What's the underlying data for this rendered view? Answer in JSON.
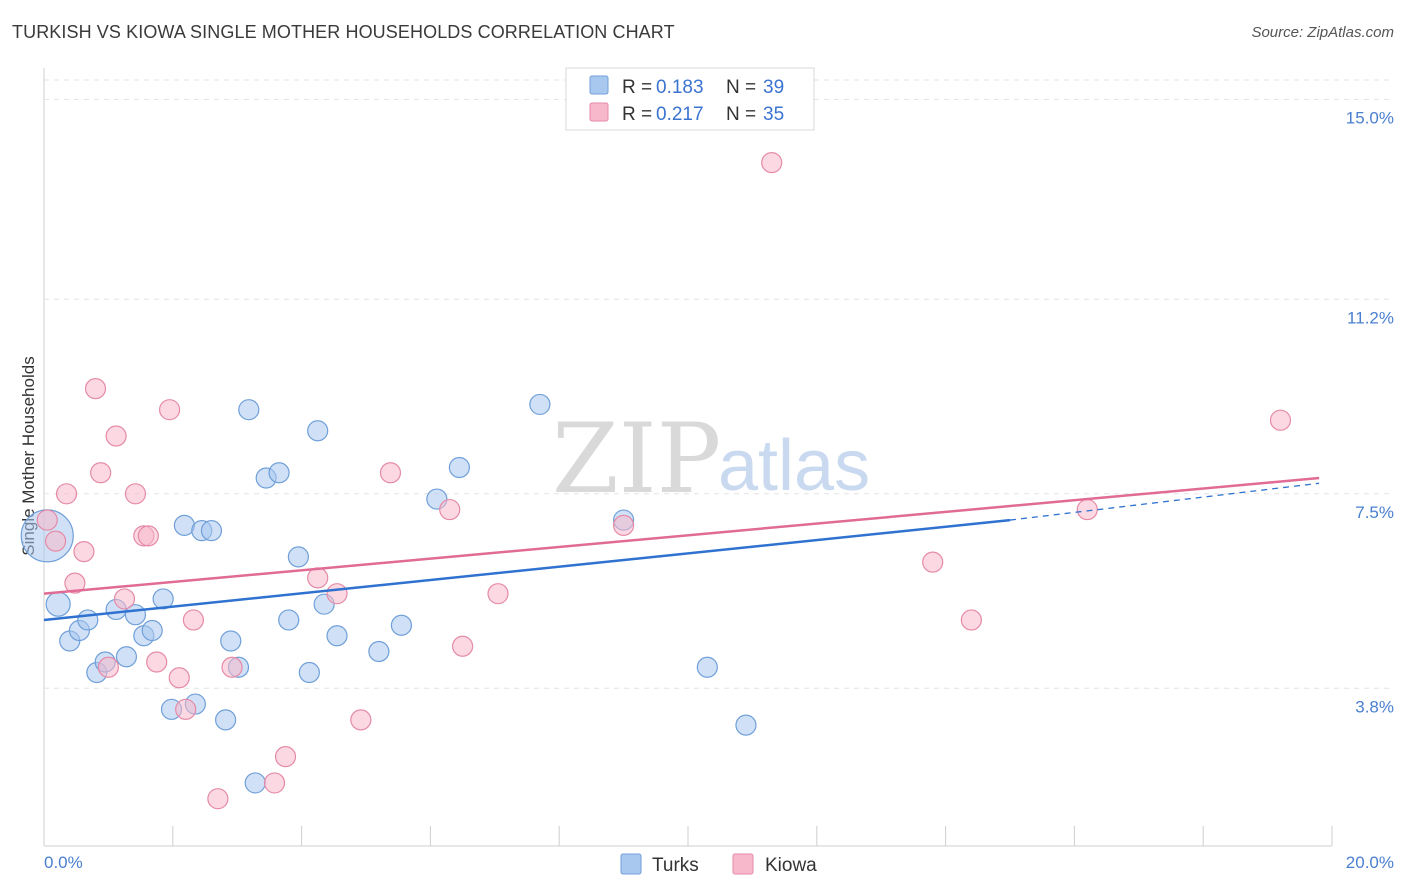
{
  "header": {
    "title": "TURKISH VS KIOWA SINGLE MOTHER HOUSEHOLDS CORRELATION CHART",
    "source": "Source: ZipAtlas.com"
  },
  "watermark": {
    "zip": "ZIP",
    "atlas": "atlas"
  },
  "legend": {
    "rows": [
      {
        "r_label": "R =",
        "r_value": "0.183",
        "n_label": "N =",
        "n_value": "39",
        "color": "#a9c8f0"
      },
      {
        "r_label": "R =",
        "r_value": "0.217",
        "n_label": "N =",
        "n_value": "35",
        "color": "#f7b8cb"
      }
    ]
  },
  "bottom_legend": {
    "turks": "Turks",
    "kiowa": "Kiowa"
  },
  "chart_data": {
    "type": "scatter",
    "title": "TURKISH VS KIOWA SINGLE MOTHER HOUSEHOLDS CORRELATION CHART",
    "xlabel": "",
    "ylabel": "Single Mother Households",
    "xlim": [
      0,
      20
    ],
    "ylim": [
      0.8,
      15.6
    ],
    "x_tick_labels": [
      "0.0%",
      "20.0%"
    ],
    "y_ticks": [
      3.8,
      7.5,
      11.2,
      15.0
    ],
    "y_tick_labels": [
      "3.8%",
      "7.5%",
      "11.2%",
      "15.0%"
    ],
    "grid": true,
    "series": [
      {
        "name": "Turks",
        "color": "#a9c8f0",
        "edge": "#6f9fd8",
        "line_color": "#2f72cf",
        "r": 0.183,
        "n": 39,
        "trend": {
          "x_start": 0,
          "y_start": 5.1,
          "x_end": 15.0,
          "y_end": 7.0,
          "dash_x_end": 19.8,
          "dash_y_end": 7.7
        },
        "points": [
          [
            0.05,
            6.7,
            26
          ],
          [
            0.22,
            5.4,
            12
          ],
          [
            0.4,
            4.7,
            10
          ],
          [
            0.55,
            4.9,
            10
          ],
          [
            0.68,
            5.1,
            10
          ],
          [
            0.82,
            4.1,
            10
          ],
          [
            0.95,
            4.3,
            10
          ],
          [
            1.12,
            5.3,
            10
          ],
          [
            1.28,
            4.4,
            10
          ],
          [
            1.42,
            5.2,
            10
          ],
          [
            1.55,
            4.8,
            10
          ],
          [
            1.68,
            4.9,
            10
          ],
          [
            1.85,
            5.5,
            10
          ],
          [
            1.98,
            3.4,
            10
          ],
          [
            2.18,
            6.9,
            10
          ],
          [
            2.35,
            3.5,
            10
          ],
          [
            2.45,
            6.8,
            10
          ],
          [
            2.6,
            6.8,
            10
          ],
          [
            2.82,
            3.2,
            10
          ],
          [
            2.9,
            4.7,
            10
          ],
          [
            3.02,
            4.2,
            10
          ],
          [
            3.18,
            9.1,
            10
          ],
          [
            3.28,
            2.0,
            10
          ],
          [
            3.45,
            7.8,
            10
          ],
          [
            3.65,
            7.9,
            10
          ],
          [
            3.8,
            5.1,
            10
          ],
          [
            3.95,
            6.3,
            10
          ],
          [
            4.12,
            4.1,
            10
          ],
          [
            4.25,
            8.7,
            10
          ],
          [
            4.35,
            5.4,
            10
          ],
          [
            4.55,
            4.8,
            10
          ],
          [
            5.2,
            4.5,
            10
          ],
          [
            5.55,
            5.0,
            10
          ],
          [
            6.1,
            7.4,
            10
          ],
          [
            6.45,
            8.0,
            10
          ],
          [
            7.7,
            9.2,
            10
          ],
          [
            9.0,
            7.0,
            10
          ],
          [
            10.3,
            4.2,
            10
          ],
          [
            10.9,
            3.1,
            10
          ]
        ]
      },
      {
        "name": "Kiowa",
        "color": "#f7b8cb",
        "edge": "#e58aa6",
        "line_color": "#e06b94",
        "r": 0.217,
        "n": 35,
        "trend": {
          "x_start": 0,
          "y_start": 5.6,
          "x_end": 19.8,
          "y_end": 7.8
        },
        "points": [
          [
            0.05,
            7.0,
            10
          ],
          [
            0.18,
            6.6,
            10
          ],
          [
            0.35,
            7.5,
            10
          ],
          [
            0.48,
            5.8,
            10
          ],
          [
            0.62,
            6.4,
            10
          ],
          [
            0.8,
            9.5,
            10
          ],
          [
            0.88,
            7.9,
            10
          ],
          [
            1.0,
            4.2,
            10
          ],
          [
            1.12,
            8.6,
            10
          ],
          [
            1.25,
            5.5,
            10
          ],
          [
            1.42,
            7.5,
            10
          ],
          [
            1.55,
            6.7,
            10
          ],
          [
            1.62,
            6.7,
            10
          ],
          [
            1.75,
            4.3,
            10
          ],
          [
            1.95,
            9.1,
            10
          ],
          [
            2.1,
            4.0,
            10
          ],
          [
            2.2,
            3.4,
            10
          ],
          [
            2.32,
            5.1,
            10
          ],
          [
            2.7,
            1.7,
            10
          ],
          [
            2.92,
            4.2,
            10
          ],
          [
            3.58,
            2.0,
            10
          ],
          [
            3.75,
            2.5,
            10
          ],
          [
            4.25,
            5.9,
            10
          ],
          [
            4.55,
            5.6,
            10
          ],
          [
            4.92,
            3.2,
            10
          ],
          [
            5.38,
            7.9,
            10
          ],
          [
            6.3,
            7.2,
            10
          ],
          [
            6.5,
            4.6,
            10
          ],
          [
            7.05,
            5.6,
            10
          ],
          [
            9.0,
            6.9,
            10
          ],
          [
            11.3,
            13.8,
            10
          ],
          [
            13.8,
            6.2,
            10
          ],
          [
            14.4,
            5.1,
            10
          ],
          [
            16.2,
            7.2,
            10
          ],
          [
            19.2,
            8.9,
            10
          ]
        ]
      }
    ]
  }
}
